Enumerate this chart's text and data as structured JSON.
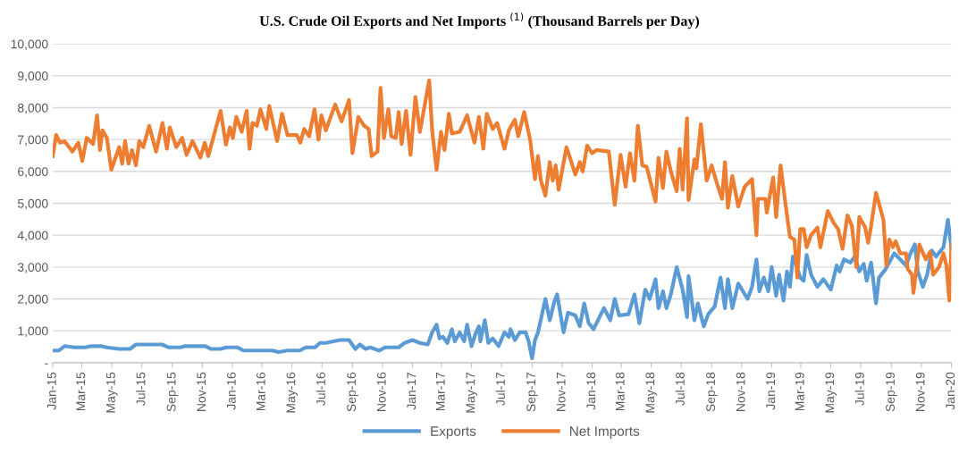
{
  "chart_data": {
    "type": "line",
    "title": "U.S. Crude Oil Exports and Net Imports $^{(1)}$ (Thousand Barrels per Day)",
    "xlim": [
      "2015-01-01",
      "2020-01-01"
    ],
    "xticks": [
      {
        "value": "2015-01-01",
        "label": "Jan-15"
      },
      {
        "value": "2015-03-01",
        "label": "Mar-15"
      },
      {
        "value": "2015-05-01",
        "label": "May-15"
      },
      {
        "value": "2015-07-01",
        "label": "Jul-15"
      },
      {
        "value": "2015-09-01",
        "label": "Sep-15"
      },
      {
        "value": "2015-11-01",
        "label": "Nov-15"
      },
      {
        "value": "2016-01-01",
        "label": "Jan-16"
      },
      {
        "value": "2016-03-01",
        "label": "Mar-16"
      },
      {
        "value": "2016-05-01",
        "label": "May-16"
      },
      {
        "value": "2016-07-01",
        "label": "Jul-16"
      },
      {
        "value": "2016-09-01",
        "label": "Sep-16"
      },
      {
        "value": "2016-11-01",
        "label": "Nov-16"
      },
      {
        "value": "2017-01-01",
        "label": "Jan-17"
      },
      {
        "value": "2017-03-01",
        "label": "Mar-17"
      },
      {
        "value": "2017-05-01",
        "label": "May-17"
      },
      {
        "value": "2017-07-01",
        "label": "Jul-17"
      },
      {
        "value": "2017-09-01",
        "label": "Sep-17"
      },
      {
        "value": "2017-11-01",
        "label": "Nov-17"
      },
      {
        "value": "2018-01-01",
        "label": "Jan-18"
      },
      {
        "value": "2018-03-01",
        "label": "Mar-18"
      },
      {
        "value": "2018-05-01",
        "label": "May-18"
      },
      {
        "value": "2018-07-01",
        "label": "Jul-18"
      },
      {
        "value": "2018-09-01",
        "label": "Sep-18"
      },
      {
        "value": "2018-11-01",
        "label": "Nov-18"
      },
      {
        "value": "2019-01-01",
        "label": "Jan-19"
      },
      {
        "value": "2019-03-01",
        "label": "Mar-19"
      },
      {
        "value": "2019-05-01",
        "label": "May-19"
      },
      {
        "value": "2019-07-01",
        "label": "Jul-19"
      },
      {
        "value": "2019-09-01",
        "label": "Sep-19"
      },
      {
        "value": "2019-11-01",
        "label": "Nov-19"
      },
      {
        "value": "2020-01-01",
        "label": "Jan-20"
      }
    ],
    "ylim": [
      0,
      10000
    ],
    "yticks": [
      {
        "value": 0,
        "label": "-"
      },
      {
        "value": 1000,
        "label": "1,000"
      },
      {
        "value": 2000,
        "label": "2,000"
      },
      {
        "value": 3000,
        "label": "3,000"
      },
      {
        "value": 4000,
        "label": "4,000"
      },
      {
        "value": 5000,
        "label": "5,000"
      },
      {
        "value": 6000,
        "label": "6,000"
      },
      {
        "value": 7000,
        "label": "7,000"
      },
      {
        "value": 8000,
        "label": "8,000"
      },
      {
        "value": 9000,
        "label": "9,000"
      },
      {
        "value": 10000,
        "label": "10,000"
      }
    ],
    "grid": "y",
    "legend": "bottom",
    "marker": "none",
    "line_style": "solid",
    "series": [
      {
        "name": "Exports",
        "color": "#5b9bd5",
        "x": [
          "2015-01-01",
          "2015-01-13",
          "2015-01-25",
          "2015-02-14",
          "2015-03-08",
          "2015-03-20",
          "2015-04-09",
          "2015-04-21",
          "2015-05-16",
          "2015-06-07",
          "2015-06-19",
          "2015-08-11",
          "2015-08-24",
          "2015-09-18",
          "2015-09-27",
          "2015-11-07",
          "2015-11-19",
          "2015-12-08",
          "2015-12-20",
          "2016-01-11",
          "2016-01-24",
          "2016-03-22",
          "2016-04-04",
          "2016-04-22",
          "2016-05-17",
          "2016-05-29",
          "2016-06-17",
          "2016-06-27",
          "2016-07-09",
          "2016-07-24",
          "2016-08-07",
          "2016-08-25",
          "2016-09-07",
          "2016-09-16",
          "2016-09-28",
          "2016-10-07",
          "2016-10-25",
          "2016-11-07",
          "2016-12-04",
          "2016-12-16",
          "2017-01-01",
          "2017-01-16",
          "2017-02-01",
          "2017-02-10",
          "2017-02-19",
          "2017-02-25",
          "2017-03-04",
          "2017-03-13",
          "2017-03-22",
          "2017-03-28",
          "2017-04-07",
          "2017-04-16",
          "2017-04-22",
          "2017-05-01",
          "2017-05-10",
          "2017-05-16",
          "2017-05-19",
          "2017-05-28",
          "2017-06-04",
          "2017-06-13",
          "2017-06-25",
          "2017-07-07",
          "2017-07-16",
          "2017-07-19",
          "2017-07-28",
          "2017-08-07",
          "2017-08-19",
          "2017-08-25",
          "2017-09-01",
          "2017-09-07",
          "2017-09-13",
          "2017-09-22",
          "2017-09-28",
          "2017-10-07",
          "2017-10-16",
          "2017-10-22",
          "2017-11-04",
          "2017-11-13",
          "2017-11-28",
          "2017-12-07",
          "2017-12-16",
          "2017-12-25",
          "2018-01-04",
          "2018-01-16",
          "2018-01-25",
          "2018-02-07",
          "2018-02-16",
          "2018-02-25",
          "2018-03-16",
          "2018-03-28",
          "2018-04-07",
          "2018-04-19",
          "2018-04-28",
          "2018-05-10",
          "2018-05-16",
          "2018-05-25",
          "2018-06-01",
          "2018-06-10",
          "2018-06-22",
          "2018-07-04",
          "2018-07-13",
          "2018-07-16",
          "2018-07-28",
          "2018-08-04",
          "2018-08-16",
          "2018-08-25",
          "2018-09-07",
          "2018-09-19",
          "2018-09-28",
          "2018-10-04",
          "2018-10-13",
          "2018-10-25",
          "2018-11-13",
          "2018-11-22",
          "2018-12-01",
          "2018-12-07",
          "2018-12-16",
          "2018-12-25",
          "2019-01-01",
          "2019-01-10",
          "2019-01-16",
          "2019-01-25",
          "2019-02-01",
          "2019-02-07",
          "2019-02-13",
          "2019-02-19",
          "2019-02-28",
          "2019-03-07",
          "2019-03-13",
          "2019-03-22",
          "2019-04-04",
          "2019-04-16",
          "2019-05-01",
          "2019-05-13",
          "2019-05-19",
          "2019-05-28",
          "2019-06-10",
          "2019-06-19",
          "2019-06-28",
          "2019-07-07",
          "2019-07-13",
          "2019-07-22",
          "2019-08-01",
          "2019-08-07",
          "2019-08-19",
          "2019-09-07",
          "2019-09-19",
          "2019-10-01",
          "2019-10-10",
          "2019-10-19",
          "2019-10-25",
          "2019-11-04",
          "2019-11-13",
          "2019-11-22",
          "2019-12-01",
          "2019-12-16",
          "2019-12-25",
          "2020-01-01"
        ],
        "values": [
          380,
          380,
          520,
          480,
          480,
          520,
          520,
          480,
          430,
          430,
          570,
          570,
          480,
          480,
          520,
          520,
          430,
          430,
          480,
          480,
          380,
          380,
          330,
          380,
          380,
          480,
          480,
          620,
          620,
          670,
          710,
          710,
          430,
          570,
          430,
          480,
          380,
          480,
          480,
          620,
          710,
          620,
          570,
          950,
          1190,
          760,
          810,
          620,
          1050,
          670,
          950,
          670,
          1190,
          520,
          950,
          1140,
          670,
          1330,
          620,
          760,
          520,
          950,
          810,
          1050,
          710,
          950,
          950,
          670,
          140,
          710,
          950,
          1570,
          2000,
          1330,
          1900,
          2140,
          950,
          1570,
          1480,
          1140,
          1860,
          1240,
          1050,
          1430,
          1710,
          1330,
          2000,
          1480,
          1520,
          2140,
          1240,
          2290,
          2000,
          2620,
          1710,
          2240,
          1710,
          2140,
          3000,
          2290,
          1430,
          2710,
          1330,
          1860,
          1140,
          1520,
          1760,
          2670,
          1710,
          2620,
          1710,
          2480,
          2000,
          2380,
          3240,
          2240,
          2670,
          2240,
          3000,
          2100,
          2760,
          1950,
          2860,
          2380,
          3330,
          3100,
          2670,
          2570,
          3380,
          2760,
          2380,
          2620,
          2290,
          3050,
          2860,
          3240,
          3140,
          3330,
          2860,
          3100,
          2570,
          3140,
          1860,
          2670,
          2900,
          3430,
          3240,
          3050,
          3430,
          3710,
          2860,
          2380,
          2760,
          3520,
          3330,
          3620,
          4480,
          3620
        ]
      },
      {
        "name": "Net Imports",
        "color": "#ed7d31",
        "x": [
          "2015-01-01",
          "2015-01-08",
          "2015-01-16",
          "2015-01-25",
          "2015-02-10",
          "2015-02-22",
          "2015-03-02",
          "2015-03-11",
          "2015-03-24",
          "2015-04-01",
          "2015-04-07",
          "2015-04-12",
          "2015-04-21",
          "2015-04-30",
          "2015-05-16",
          "2015-05-22",
          "2015-05-28",
          "2015-06-04",
          "2015-06-11",
          "2015-06-19",
          "2015-06-26",
          "2015-07-04",
          "2015-07-16",
          "2015-07-30",
          "2015-08-12",
          "2015-08-21",
          "2015-08-27",
          "2015-09-09",
          "2015-09-21",
          "2015-09-30",
          "2015-10-12",
          "2015-10-28",
          "2015-11-06",
          "2015-11-13",
          "2015-12-08",
          "2015-12-19",
          "2015-12-27",
          "2016-01-02",
          "2016-01-09",
          "2016-01-20",
          "2016-01-30",
          "2016-02-05",
          "2016-02-11",
          "2016-02-20",
          "2016-02-27",
          "2016-03-10",
          "2016-03-16",
          "2016-04-01",
          "2016-04-11",
          "2016-04-22",
          "2016-05-11",
          "2016-05-18",
          "2016-05-26",
          "2016-06-05",
          "2016-06-16",
          "2016-06-24",
          "2016-06-30",
          "2016-07-09",
          "2016-07-28",
          "2016-08-10",
          "2016-08-25",
          "2016-09-01",
          "2016-09-13",
          "2016-09-25",
          "2016-10-04",
          "2016-10-10",
          "2016-10-22",
          "2016-10-28",
          "2016-11-04",
          "2016-11-13",
          "2016-11-19",
          "2016-11-28",
          "2016-12-04",
          "2016-12-10",
          "2016-12-19",
          "2016-12-28",
          "2017-01-07",
          "2017-01-16",
          "2017-02-04",
          "2017-02-10",
          "2017-02-19",
          "2017-02-28",
          "2017-03-07",
          "2017-03-16",
          "2017-03-22",
          "2017-04-07",
          "2017-04-22",
          "2017-05-07",
          "2017-05-16",
          "2017-05-25",
          "2017-06-01",
          "2017-06-13",
          "2017-06-22",
          "2017-07-07",
          "2017-07-16",
          "2017-07-28",
          "2017-08-04",
          "2017-08-16",
          "2017-08-28",
          "2017-09-07",
          "2017-09-13",
          "2017-09-19",
          "2017-09-28",
          "2017-10-07",
          "2017-10-13",
          "2017-10-19",
          "2017-10-25",
          "2017-11-10",
          "2017-11-28",
          "2017-12-07",
          "2017-12-13",
          "2017-12-22",
          "2018-01-01",
          "2018-01-10",
          "2018-02-04",
          "2018-02-16",
          "2018-02-28",
          "2018-03-10",
          "2018-03-19",
          "2018-03-28",
          "2018-04-04",
          "2018-04-13",
          "2018-04-22",
          "2018-05-10",
          "2018-05-16",
          "2018-05-25",
          "2018-06-01",
          "2018-06-10",
          "2018-06-22",
          "2018-06-28",
          "2018-07-04",
          "2018-07-13",
          "2018-07-16",
          "2018-07-28",
          "2018-08-01",
          "2018-08-10",
          "2018-08-22",
          "2018-09-01",
          "2018-09-10",
          "2018-09-22",
          "2018-09-28",
          "2018-10-04",
          "2018-10-13",
          "2018-10-25",
          "2018-11-07",
          "2018-11-22",
          "2018-12-01",
          "2018-12-04",
          "2018-12-19",
          "2018-12-22",
          "2019-01-04",
          "2019-01-10",
          "2019-01-19",
          "2019-01-30",
          "2019-02-07",
          "2019-02-16",
          "2019-02-22",
          "2019-02-28",
          "2019-03-07",
          "2019-03-13",
          "2019-03-22",
          "2019-04-04",
          "2019-04-10",
          "2019-04-25",
          "2019-05-07",
          "2019-05-16",
          "2019-05-25",
          "2019-06-04",
          "2019-06-13",
          "2019-06-22",
          "2019-06-28",
          "2019-07-10",
          "2019-07-16",
          "2019-07-22",
          "2019-08-01",
          "2019-08-16",
          "2019-08-22",
          "2019-08-28",
          "2019-09-04",
          "2019-09-10",
          "2019-09-19",
          "2019-10-01",
          "2019-10-04",
          "2019-10-13",
          "2019-10-16",
          "2019-10-28",
          "2019-11-10",
          "2019-11-19",
          "2019-11-25",
          "2019-12-07",
          "2019-12-16",
          "2019-12-22",
          "2019-12-28",
          "2020-01-01"
        ],
        "values": [
          6480,
          7140,
          6900,
          6950,
          6620,
          6900,
          6330,
          7050,
          6860,
          7760,
          6670,
          7290,
          7050,
          6050,
          6760,
          6240,
          6950,
          6240,
          6670,
          6190,
          6950,
          6760,
          7430,
          6620,
          7520,
          6710,
          7380,
          6760,
          7050,
          6520,
          6950,
          6430,
          6900,
          6480,
          7900,
          6840,
          7380,
          7050,
          7710,
          7240,
          7900,
          6710,
          7520,
          7430,
          7950,
          7330,
          8050,
          6950,
          7810,
          7140,
          7140,
          6900,
          7330,
          7100,
          7950,
          7000,
          7760,
          7290,
          8100,
          7570,
          8240,
          6570,
          7710,
          7430,
          7330,
          6480,
          6620,
          8620,
          7050,
          7950,
          7100,
          7050,
          7860,
          6860,
          7900,
          6520,
          8330,
          7240,
          8860,
          7290,
          6050,
          7240,
          6670,
          7810,
          7190,
          7240,
          7760,
          6900,
          7710,
          6710,
          7810,
          7330,
          7520,
          6710,
          7290,
          7620,
          7100,
          7860,
          7000,
          5760,
          6480,
          5710,
          5240,
          6290,
          5710,
          6190,
          5430,
          6760,
          5900,
          6290,
          6000,
          6810,
          6570,
          6670,
          6620,
          4950,
          6520,
          5520,
          6570,
          5710,
          7430,
          6190,
          6140,
          5050,
          6430,
          5480,
          6620,
          6000,
          5380,
          6710,
          5430,
          7670,
          5100,
          6380,
          6100,
          7480,
          5710,
          6190,
          5710,
          5140,
          6290,
          4860,
          5860,
          4900,
          5520,
          5760,
          4000,
          5140,
          5140,
          4710,
          5810,
          4570,
          6190,
          4860,
          3950,
          3860,
          2670,
          4190,
          4190,
          3620,
          4000,
          4240,
          3620,
          4760,
          4380,
          4190,
          3570,
          4620,
          4290,
          3000,
          4570,
          4240,
          3760,
          4290,
          5330,
          4480,
          3050,
          3860,
          3620,
          3810,
          3430,
          3430,
          2950,
          2760,
          2190,
          3710,
          3240,
          3480,
          2760,
          3000,
          3430,
          3050,
          1950,
          3670
        ]
      }
    ]
  }
}
